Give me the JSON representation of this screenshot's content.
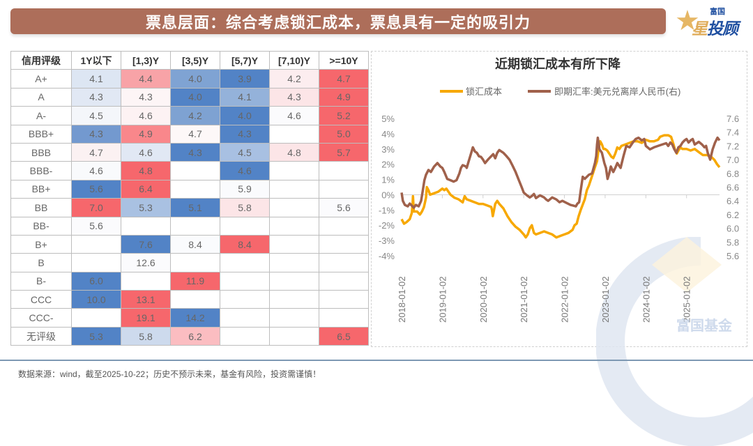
{
  "header": {
    "title": "票息层面：综合考虑锁汇成本，票息具有一定的吸引力",
    "logo_small": "富国",
    "logo_big_first": "星",
    "logo_big_rest": "投顾",
    "logo_icon": "star-icon"
  },
  "table": {
    "columns": [
      "信用评级",
      "1Y以下",
      "[1,3)Y",
      "[3,5)Y",
      "[5,7)Y",
      "[7,10)Y",
      ">=10Y"
    ],
    "rows": [
      {
        "rating": "A+",
        "cells": [
          "4.1",
          "4.4",
          "4.0",
          "3.9",
          "4.2",
          "4.7"
        ]
      },
      {
        "rating": "A",
        "cells": [
          "4.3",
          "4.3",
          "4.0",
          "4.1",
          "4.3",
          "4.9"
        ]
      },
      {
        "rating": "A-",
        "cells": [
          "4.5",
          "4.6",
          "4.2",
          "4.0",
          "4.6",
          "5.2"
        ]
      },
      {
        "rating": "BBB+",
        "cells": [
          "4.3",
          "4.9",
          "4.7",
          "4.3",
          "",
          "5.0"
        ]
      },
      {
        "rating": "BBB",
        "cells": [
          "4.7",
          "4.6",
          "4.3",
          "4.5",
          "4.8",
          "5.7"
        ]
      },
      {
        "rating": "BBB-",
        "cells": [
          "4.6",
          "4.8",
          "",
          "4.6",
          "",
          ""
        ]
      },
      {
        "rating": "BB+",
        "cells": [
          "5.6",
          "6.4",
          "",
          "5.9",
          "",
          ""
        ]
      },
      {
        "rating": "BB",
        "cells": [
          "7.0",
          "5.3",
          "5.1",
          "5.8",
          "",
          "5.6"
        ]
      },
      {
        "rating": "BB-",
        "cells": [
          "5.6",
          "",
          "",
          "",
          "",
          ""
        ]
      },
      {
        "rating": "B+",
        "cells": [
          "",
          "7.6",
          "8.4",
          "8.4",
          "",
          ""
        ]
      },
      {
        "rating": "B",
        "cells": [
          "",
          "12.6",
          "",
          "",
          "",
          ""
        ]
      },
      {
        "rating": "B-",
        "cells": [
          "6.0",
          "",
          "11.9",
          "",
          "",
          ""
        ]
      },
      {
        "rating": "CCC",
        "cells": [
          "10.0",
          "13.1",
          "",
          "",
          "",
          ""
        ]
      },
      {
        "rating": "CCC-",
        "cells": [
          "",
          "19.1",
          "14.2",
          "",
          "",
          ""
        ]
      },
      {
        "rating": "无评级",
        "cells": [
          "5.3",
          "5.8",
          "6.2",
          "",
          "",
          "6.5"
        ]
      }
    ],
    "cell_colors": [
      [
        "#dde6f3",
        "#f8a3a7",
        "#7fa3d3",
        "#5283c6",
        "#fcedef",
        "#f6676c"
      ],
      [
        "#e1e8f4",
        "#fdf5f6",
        "#5283c6",
        "#94b2da",
        "#fce5e7",
        "#f6676c"
      ],
      [
        "#f4f6fa",
        "#fdf2f3",
        "#7ea2d2",
        "#5283c6",
        "#fbfbfd",
        "#f6676c"
      ],
      [
        "#7399cf",
        "#f9878b",
        "#fdf8f8",
        "#5283c6",
        "#ffffff",
        "#f6676c"
      ],
      [
        "#fbf1f2",
        "#e1e8f4",
        "#5283c6",
        "#a8c0e2",
        "#fce5e7",
        "#f6676c"
      ],
      [
        "#f9fafc",
        "#f6676c",
        "#ffffff",
        "#5283c6",
        "#ffffff",
        "#ffffff"
      ],
      [
        "#5283c6",
        "#f6676c",
        "#ffffff",
        "#fafbfd",
        "#ffffff",
        "#ffffff"
      ],
      [
        "#f6676c",
        "#a9c1e2",
        "#5283c6",
        "#fce5e7",
        "#ffffff",
        "#fbfbfd"
      ],
      [
        "#fbfbfd",
        "#ffffff",
        "#ffffff",
        "#ffffff",
        "#ffffff",
        "#ffffff"
      ],
      [
        "#ffffff",
        "#5283c6",
        "#fafbfd",
        "#f6676c",
        "#ffffff",
        "#ffffff"
      ],
      [
        "#ffffff",
        "#fbfbfd",
        "#ffffff",
        "#ffffff",
        "#ffffff",
        "#ffffff"
      ],
      [
        "#5283c6",
        "#ffffff",
        "#f6676c",
        "#ffffff",
        "#ffffff",
        "#ffffff"
      ],
      [
        "#5283c6",
        "#f6676c",
        "#ffffff",
        "#ffffff",
        "#ffffff",
        "#ffffff"
      ],
      [
        "#ffffff",
        "#f6676c",
        "#5283c6",
        "#ffffff",
        "#ffffff",
        "#ffffff"
      ],
      [
        "#5283c6",
        "#cddaed",
        "#fbbdc1",
        "#ffffff",
        "#ffffff",
        "#f6676c"
      ]
    ]
  },
  "chart_data": {
    "type": "line",
    "title": "近期锁汇成本有所下降",
    "legend_position": "top-center",
    "xlabel": "",
    "ylabel_left": "",
    "ylabel_right": "",
    "x_ticks": [
      "2018-01-02",
      "2019-01-02",
      "2020-01-02",
      "2021-01-02",
      "2022-01-02",
      "2023-01-02",
      "2024-01-02",
      "2025-01-02"
    ],
    "x_range": [
      2018.0,
      2025.81
    ],
    "y_left": {
      "ticks": [
        "5%",
        "4%",
        "3%",
        "2%",
        "1%",
        "0%",
        "-1%",
        "-2%",
        "-3%",
        "-4%"
      ],
      "range": [
        -4,
        5
      ]
    },
    "y_right": {
      "ticks": [
        "7.6",
        "7.4",
        "7.2",
        "7.0",
        "6.8",
        "6.6",
        "6.4",
        "6.2",
        "6.0",
        "5.8",
        "5.6"
      ],
      "range": [
        5.6,
        7.6
      ]
    },
    "grid": false,
    "series": [
      {
        "name": "锁汇成本",
        "axis": "left",
        "color": "#f7a800",
        "x": [
          2018.0,
          2018.06,
          2018.12,
          2018.2,
          2018.25,
          2018.27,
          2018.28,
          2018.3,
          2018.38,
          2018.45,
          2018.5,
          2018.55,
          2018.6,
          2018.62,
          2018.66,
          2018.7,
          2018.8,
          2018.9,
          2019.0,
          2019.05,
          2019.1,
          2019.2,
          2019.3,
          2019.4,
          2019.5,
          2019.55,
          2019.6,
          2019.7,
          2019.8,
          2019.9,
          2020.0,
          2020.1,
          2020.2,
          2020.22,
          2020.24,
          2020.3,
          2020.35,
          2020.4,
          2020.5,
          2020.6,
          2020.7,
          2020.8,
          2020.9,
          2021.0,
          2021.05,
          2021.1,
          2021.15,
          2021.2,
          2021.25,
          2021.3,
          2021.4,
          2021.5,
          2021.6,
          2021.7,
          2021.8,
          2021.9,
          2022.0,
          2022.1,
          2022.2,
          2022.25,
          2022.3,
          2022.35,
          2022.4,
          2022.5,
          2022.55,
          2022.6,
          2022.65,
          2022.7,
          2022.75,
          2022.8,
          2022.85,
          2022.88,
          2022.92,
          2022.96,
          2023.0,
          2023.05,
          2023.1,
          2023.15,
          2023.2,
          2023.25,
          2023.3,
          2023.35,
          2023.4,
          2023.5,
          2023.6,
          2023.7,
          2023.8,
          2023.9,
          2024.0,
          2024.1,
          2024.2,
          2024.3,
          2024.35,
          2024.45,
          2024.55,
          2024.62,
          2024.68,
          2024.72,
          2024.76,
          2024.8,
          2024.85,
          2024.9,
          2025.0,
          2025.1,
          2025.2,
          2025.3,
          2025.4,
          2025.5,
          2025.6,
          2025.68,
          2025.75,
          2025.81
        ],
        "values": [
          -1.6,
          -1.9,
          -1.8,
          -1.6,
          -1.2,
          -0.6,
          -0.1,
          -1.1,
          -1.1,
          -1.3,
          -1.1,
          -0.8,
          -0.2,
          0.5,
          0.3,
          0.0,
          0.1,
          0.2,
          0.4,
          0.3,
          0.4,
          0.0,
          -0.2,
          -0.3,
          -0.5,
          -0.1,
          -0.3,
          -0.4,
          -0.5,
          -0.6,
          -0.6,
          -0.7,
          -0.8,
          -1.0,
          -1.4,
          -0.6,
          -0.4,
          -0.6,
          -0.9,
          -1.4,
          -1.8,
          -2.1,
          -2.3,
          -2.6,
          -2.8,
          -2.6,
          -2.2,
          -2.0,
          -2.5,
          -2.6,
          -2.5,
          -2.4,
          -2.5,
          -2.6,
          -2.8,
          -2.7,
          -2.6,
          -2.5,
          -2.3,
          -2.0,
          -1.9,
          -1.4,
          -1.0,
          -0.3,
          0.3,
          0.6,
          1.0,
          1.4,
          1.8,
          2.2,
          3.2,
          3.5,
          3.3,
          3.0,
          3.0,
          2.9,
          2.7,
          2.5,
          2.4,
          2.7,
          3.1,
          3.0,
          3.2,
          3.3,
          3.4,
          3.5,
          3.5,
          3.4,
          3.6,
          3.5,
          3.5,
          3.6,
          3.8,
          3.9,
          3.9,
          3.8,
          3.3,
          2.9,
          2.7,
          2.9,
          3.1,
          3.0,
          3.0,
          2.9,
          3.0,
          2.8,
          2.6,
          2.6,
          2.5,
          2.3,
          2.0,
          1.8
        ]
      },
      {
        "name": "即期汇率:美元兑离岸人民币(右)",
        "axis": "right",
        "color": "#a0614b",
        "x": [
          2018.0,
          2018.03,
          2018.08,
          2018.15,
          2018.2,
          2018.3,
          2018.35,
          2018.42,
          2018.48,
          2018.52,
          2018.56,
          2018.6,
          2018.66,
          2018.72,
          2018.8,
          2018.88,
          2018.95,
          2019.0,
          2019.05,
          2019.12,
          2019.2,
          2019.28,
          2019.35,
          2019.42,
          2019.46,
          2019.5,
          2019.58,
          2019.6,
          2019.65,
          2019.7,
          2019.75,
          2019.8,
          2019.85,
          2019.9,
          2019.95,
          2020.0,
          2020.05,
          2020.12,
          2020.2,
          2020.25,
          2020.3,
          2020.35,
          2020.4,
          2020.45,
          2020.5,
          2020.58,
          2020.65,
          2020.72,
          2020.8,
          2020.88,
          2020.95,
          2021.0,
          2021.08,
          2021.15,
          2021.2,
          2021.25,
          2021.3,
          2021.4,
          2021.5,
          2021.55,
          2021.6,
          2021.7,
          2021.8,
          2021.88,
          2021.95,
          2022.05,
          2022.15,
          2022.22,
          2022.28,
          2022.32,
          2022.36,
          2022.4,
          2022.45,
          2022.5,
          2022.6,
          2022.68,
          2022.75,
          2022.78,
          2022.8,
          2022.82,
          2022.86,
          2022.92,
          2022.98,
          2023.02,
          2023.06,
          2023.1,
          2023.14,
          2023.2,
          2023.25,
          2023.3,
          2023.38,
          2023.45,
          2023.52,
          2023.6,
          2023.68,
          2023.75,
          2023.82,
          2023.9,
          2023.96,
          2024.0,
          2024.1,
          2024.2,
          2024.3,
          2024.4,
          2024.5,
          2024.55,
          2024.6,
          2024.65,
          2024.7,
          2024.75,
          2024.8,
          2024.85,
          2024.9,
          2024.95,
          2025.0,
          2025.05,
          2025.1,
          2025.15,
          2025.2,
          2025.3,
          2025.38,
          2025.44,
          2025.48,
          2025.52,
          2025.58,
          2025.64,
          2025.7,
          2025.76,
          2025.81
        ],
        "values": [
          6.52,
          6.4,
          6.34,
          6.32,
          6.36,
          6.3,
          6.34,
          6.32,
          6.4,
          6.55,
          6.7,
          6.78,
          6.85,
          6.82,
          6.9,
          6.95,
          6.9,
          6.88,
          6.82,
          6.72,
          6.7,
          6.68,
          6.7,
          6.8,
          6.88,
          6.92,
          6.9,
          6.88,
          6.98,
          7.08,
          7.18,
          7.12,
          7.1,
          7.05,
          7.04,
          7.0,
          6.95,
          7.0,
          7.05,
          7.08,
          7.02,
          7.1,
          7.14,
          7.12,
          7.1,
          7.05,
          7.0,
          6.92,
          6.82,
          6.7,
          6.6,
          6.52,
          6.48,
          6.45,
          6.47,
          6.5,
          6.44,
          6.48,
          6.45,
          6.42,
          6.4,
          6.45,
          6.42,
          6.38,
          6.4,
          6.37,
          6.34,
          6.33,
          6.32,
          6.36,
          6.38,
          6.55,
          6.75,
          6.72,
          6.78,
          6.8,
          6.95,
          7.05,
          7.22,
          7.32,
          7.15,
          7.1,
          6.95,
          6.88,
          6.72,
          6.8,
          6.9,
          6.82,
          6.88,
          6.95,
          6.88,
          7.05,
          7.2,
          7.18,
          7.25,
          7.3,
          7.32,
          7.28,
          7.3,
          7.2,
          7.15,
          7.18,
          7.2,
          7.22,
          7.24,
          7.2,
          7.25,
          7.22,
          7.15,
          7.1,
          7.18,
          7.2,
          7.25,
          7.28,
          7.3,
          7.25,
          7.28,
          7.3,
          7.22,
          7.26,
          7.22,
          7.18,
          7.2,
          7.1,
          7.0,
          7.15,
          7.25,
          7.32,
          7.28
        ]
      }
    ]
  },
  "watermark": {
    "text": "富国基金"
  },
  "footer": {
    "note": "数据来源：wind，截至2025-10-22；历史不预示未来，基金有风险，投资需谨慎！"
  }
}
